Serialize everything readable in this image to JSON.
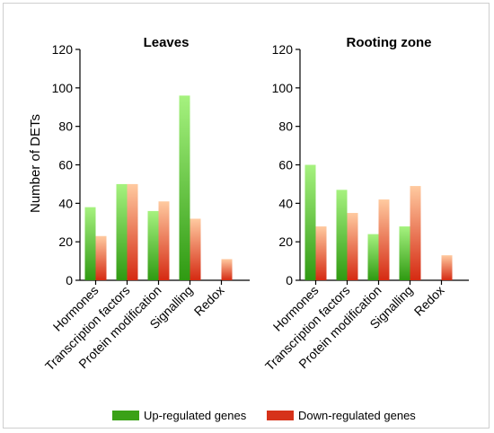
{
  "chart_data": [
    {
      "type": "bar",
      "title": "Leaves",
      "ylabel": "Number of DETs",
      "xlabel": "",
      "categories": [
        "Hormones",
        "Transcription factors",
        "Protein modification",
        "Signalling",
        "Redox"
      ],
      "series": [
        {
          "name": "Up-regulated genes",
          "values": [
            38,
            50,
            36,
            96,
            0
          ]
        },
        {
          "name": "Down-regulated genes",
          "values": [
            23,
            50,
            41,
            32,
            11
          ]
        }
      ],
      "ylim": [
        0,
        120
      ],
      "yticks": [
        "0",
        "20",
        "40",
        "60",
        "80",
        "100",
        "120"
      ],
      "grid": false
    },
    {
      "type": "bar",
      "title": "Rooting zone",
      "ylabel": "",
      "xlabel": "",
      "categories": [
        "Hormones",
        "Transcription factors",
        "Protein modification",
        "Signalling",
        "Redox"
      ],
      "series": [
        {
          "name": "Up-regulated genes",
          "values": [
            60,
            47,
            24,
            28,
            0
          ]
        },
        {
          "name": "Down-regulated genes",
          "values": [
            28,
            35,
            42,
            49,
            13
          ]
        }
      ],
      "ylim": [
        0,
        120
      ],
      "yticks": [
        "0",
        "20",
        "40",
        "60",
        "80",
        "100",
        "120"
      ],
      "grid": false
    }
  ],
  "legend": {
    "placement": "bottom",
    "items": [
      {
        "label": "Up-regulated genes",
        "color": "#3aa117"
      },
      {
        "label": "Down-regulated genes",
        "color": "#d6321a"
      }
    ]
  },
  "colors": {
    "up_top": "#a6f27f",
    "up_bottom": "#2f9a12",
    "down_top": "#ffcaa0",
    "down_bottom": "#d52a12"
  }
}
